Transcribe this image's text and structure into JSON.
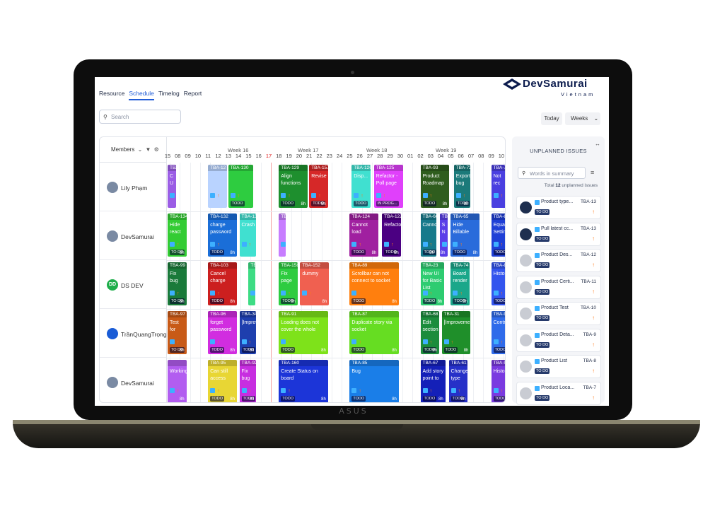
{
  "nav": {
    "tabs": [
      "Resource",
      "Schedule",
      "Timelog",
      "Report"
    ],
    "active": "Schedule"
  },
  "brand": {
    "name": "DevSamurai",
    "sub": "Vietnam",
    "color": "#0b1b4d"
  },
  "laptop_brand": "ASUS",
  "search": {
    "placeholder": "Search"
  },
  "controls": {
    "today": "Today",
    "weeks": "Weeks"
  },
  "schedule": {
    "members_label": "Members",
    "weeks": [
      "Week 16",
      "Week 17",
      "Week 18",
      "Week 19"
    ],
    "days": [
      "15",
      "08",
      "09",
      "10",
      "11",
      "12",
      "13",
      "14",
      "15",
      "16",
      "17",
      "18",
      "19",
      "20",
      "21",
      "22",
      "23",
      "24",
      "25",
      "26",
      "27",
      "28",
      "29",
      "30",
      "01",
      "02",
      "03",
      "04",
      "05",
      "06",
      "07",
      "08",
      "09",
      "10"
    ],
    "today": "17",
    "members": [
      "Lily Phạm",
      "DevSamurai",
      "DS DEV",
      "TrầnQuangTrọng",
      "DevSamurai"
    ],
    "member_initials": "DD",
    "cards": [
      {
        "key": "TBA-1",
        "title": "C U",
        "status": "",
        "hours": "",
        "color": "#9b5de5"
      },
      {
        "key": "TBA-12",
        "title": "",
        "status": "",
        "hours": "",
        "color": "#b9d3ff"
      },
      {
        "key": "TBA-130",
        "title": "",
        "status": "TODO",
        "hours": "",
        "color": "#2ecc40"
      },
      {
        "key": "TBA-129",
        "title": "Align functions",
        "status": "TODO",
        "hours": "8h",
        "color": "#1e8f2e"
      },
      {
        "key": "TBA-157",
        "title": "Revise",
        "status": "TODO",
        "hours": "8h",
        "color": "#d62828"
      },
      {
        "key": "TBA-126",
        "title": "Disp...",
        "status": "TODO",
        "hours": "",
        "color": "#40e0d0"
      },
      {
        "key": "TBA-125",
        "title": "Refactor - Poll page",
        "status": "IN PROG...",
        "hours": "",
        "color": "#e040fb"
      },
      {
        "key": "TBA-93",
        "title": "Product Roadmap",
        "status": "TODO",
        "hours": "8h",
        "color": "#2f5d1e"
      },
      {
        "key": "TBA-72",
        "title": "Export bug",
        "status": "TODO",
        "hours": "8h",
        "color": "#1b7a7a"
      },
      {
        "key": "TBA-7",
        "title": "Not rec",
        "status": "",
        "hours": "",
        "color": "#4a3fe0"
      },
      {
        "key": "TBA-134",
        "title": "Hide react",
        "status": "TO DO",
        "hours": "8h",
        "color": "#33cc33"
      },
      {
        "key": "TBA-132",
        "title": "charge password",
        "status": "TODO",
        "hours": "8h",
        "color": "#1a6ed8"
      },
      {
        "key": "TBA-131",
        "title": "Crash",
        "status": "",
        "hours": "",
        "color": "#40e0d0"
      },
      {
        "key": "TBA-1",
        "title": "",
        "status": "",
        "hours": "",
        "color": "#c77dff"
      },
      {
        "key": "TBA-124",
        "title": "Cannot load",
        "status": "TODO",
        "hours": "8h",
        "color": "#a020a0"
      },
      {
        "key": "TBA-122",
        "title": "Refactor",
        "status": "TODO",
        "hours": "8h",
        "color": "#4b0082"
      },
      {
        "key": "TBA-66",
        "title": "Cannot",
        "status": "TODO",
        "hours": "8h",
        "color": "#167a8b"
      },
      {
        "key": "TBA",
        "title": "S N",
        "status": "",
        "hours": "8h",
        "color": "#5a3fe8"
      },
      {
        "key": "TBA-65",
        "title": "Hide Billable",
        "status": "TODO",
        "hours": "8h",
        "color": "#2a6bdb"
      },
      {
        "key": "TBA-84",
        "title": "Equal Setting",
        "status": "TODO",
        "hours": "",
        "color": "#1f3fd6"
      },
      {
        "key": "TBA-99",
        "title": "Fix bug",
        "status": "TO DO",
        "hours": "8h",
        "color": "#1a7a3a"
      },
      {
        "key": "TBA-103",
        "title": "Cancel charge",
        "status": "TODO",
        "hours": "8h",
        "color": "#cc1f1f"
      },
      {
        "key": "TBA",
        "title": "",
        "status": "",
        "hours": "",
        "color": "#3ddc84"
      },
      {
        "key": "TBA-158",
        "title": "Fix page",
        "status": "TODO",
        "hours": "8h",
        "color": "#2ecc40"
      },
      {
        "key": "TBA-152",
        "title": "dummy",
        "status": "",
        "hours": "8h",
        "color": "#f06050"
      },
      {
        "key": "TBA-89",
        "title": "Scrollbar can not connect to socket",
        "status": "TODO",
        "hours": "8h",
        "color": "#ff7f0e"
      },
      {
        "key": "TBA-23",
        "title": "New UI for Basic List",
        "status": "TODO",
        "hours": "8h",
        "color": "#2ecc71"
      },
      {
        "key": "TBA-74",
        "title": "Board render",
        "status": "TODO",
        "hours": "8h",
        "color": "#1aa78a"
      },
      {
        "key": "TBA-86",
        "title": "History",
        "status": "TODO",
        "hours": "",
        "color": "#3355ee"
      },
      {
        "key": "TBA-97",
        "title": "Test for",
        "status": "TO DO",
        "hours": "8h",
        "color": "#c85a17"
      },
      {
        "key": "TBA-96",
        "title": "forget password",
        "status": "TODO",
        "hours": "8h",
        "color": "#d12de0"
      },
      {
        "key": "TBA-34",
        "title": "[Improvement]",
        "status": "TODO",
        "hours": "8h",
        "color": "#1e3fae"
      },
      {
        "key": "TBA-91",
        "title": "Loading does not cover the whole",
        "status": "TODO",
        "hours": "8h",
        "color": "#7ee21a"
      },
      {
        "key": "TBA-87",
        "title": "Duplicate story via socket",
        "status": "TODO",
        "hours": "8h",
        "color": "#66dd22"
      },
      {
        "key": "TBA-68",
        "title": "Edit section",
        "status": "TODO",
        "hours": "8h",
        "color": "#1c8c3c"
      },
      {
        "key": "TBA-31",
        "title": "[Improvement]",
        "status": "TODO",
        "hours": "8h",
        "color": "#1f8f2a"
      },
      {
        "key": "TBA-97",
        "title": "Control",
        "status": "TODO",
        "hours": "",
        "color": "#2f6bea"
      },
      {
        "key": "",
        "title": "Working",
        "status": "",
        "hours": "8h",
        "color": "#b25df0"
      },
      {
        "key": "TBA-95",
        "title": "Can still access",
        "status": "TODO",
        "hours": "8h",
        "color": "#e8d634"
      },
      {
        "key": "TBA-92",
        "title": "Fix bug",
        "status": "TODO",
        "hours": "8h",
        "color": "#c72ee0"
      },
      {
        "key": "TBA-160",
        "title": "Create Status on board",
        "status": "TODO",
        "hours": "8h",
        "color": "#1c35d8"
      },
      {
        "key": "TBA-85",
        "title": "Bug",
        "status": "TODO",
        "hours": "8h",
        "color": "#1a7ee8"
      },
      {
        "key": "TBA-67",
        "title": "Add story point to",
        "status": "TODO",
        "hours": "8h",
        "color": "#1420b8"
      },
      {
        "key": "TBA-61",
        "title": "Change type",
        "status": "TODO",
        "hours": "8h",
        "color": "#2630c8"
      },
      {
        "key": "TBA-55",
        "title": "History",
        "status": "TODO",
        "hours": "",
        "color": "#7a3ae0"
      }
    ]
  },
  "unplanned": {
    "title": "UNPLANNED ISSUES",
    "search_placeholder": "Words in summary",
    "total_prefix": "Total",
    "total_count": "12",
    "total_suffix": "unplanned issues",
    "issues": [
      {
        "summary": "Product type...",
        "key": "TBA-13",
        "status": "TO DO",
        "avatar": "user"
      },
      {
        "summary": "Pull latest cc...",
        "key": "TBA-13",
        "status": "TO DO",
        "avatar": "user"
      },
      {
        "summary": "Product Des...",
        "key": "TBA-12",
        "status": "TO DO",
        "avatar": "blank"
      },
      {
        "summary": "Product Certi...",
        "key": "TBA-11",
        "status": "TO DO",
        "avatar": "blank"
      },
      {
        "summary": "Product Test",
        "key": "TBA-10",
        "status": "TO DO",
        "avatar": "blank"
      },
      {
        "summary": "Product Deta...",
        "key": "TBA-9",
        "status": "TO DO",
        "avatar": "blank"
      },
      {
        "summary": "Product List",
        "key": "TBA-8",
        "status": "TO DO",
        "avatar": "blank"
      },
      {
        "summary": "Product Loca...",
        "key": "TBA-7",
        "status": "TO DO",
        "avatar": "blank"
      }
    ]
  }
}
